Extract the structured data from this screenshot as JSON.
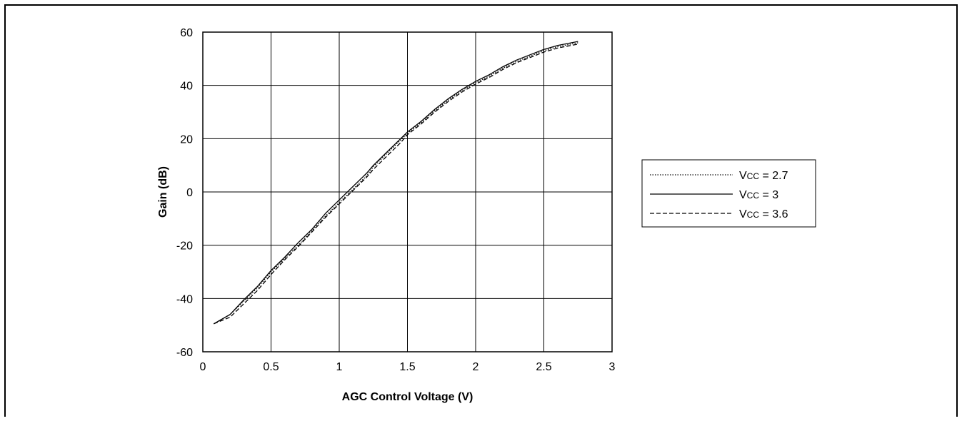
{
  "chart_data": {
    "type": "line",
    "title": "",
    "xlabel": "AGC Control Voltage (V)",
    "ylabel": "Gain (dB)",
    "xlim": [
      0,
      3
    ],
    "ylim": [
      -60,
      60
    ],
    "xticks": [
      0,
      0.5,
      1,
      1.5,
      2,
      2.5,
      3
    ],
    "xtick_labels": [
      "0",
      "0.5",
      "1",
      "1.5",
      "2",
      "2.5",
      "3"
    ],
    "yticks": [
      -60,
      -40,
      -20,
      0,
      20,
      40,
      60
    ],
    "ytick_labels": [
      "-60",
      "-40",
      "-20",
      "0",
      "20",
      "40",
      "60"
    ],
    "grid": true,
    "legend": {
      "position": "right"
    },
    "series": [
      {
        "name": "Vcc = 2.7",
        "legend_label": {
          "v": "V",
          "cc": "CC",
          "rest": " = 2.7"
        },
        "dash": "dotted",
        "x": [
          0.08,
          0.2,
          0.3,
          0.4,
          0.5,
          0.6,
          0.7,
          0.8,
          0.9,
          1.0,
          1.1,
          1.2,
          1.25,
          1.35,
          1.45,
          1.5,
          1.6,
          1.7,
          1.8,
          1.9,
          2.0,
          2.1,
          2.2,
          2.3,
          2.4,
          2.5,
          2.6,
          2.75
        ],
        "y": [
          -49.5,
          -46,
          -41,
          -36,
          -30,
          -25,
          -20,
          -14.5,
          -9,
          -4,
          1,
          6,
          9.5,
          14.5,
          19.5,
          22,
          26,
          30.5,
          34.5,
          38,
          41,
          43.5,
          46.5,
          49,
          51,
          53,
          54.5,
          56
        ]
      },
      {
        "name": "Vcc = 3",
        "legend_label": {
          "v": "V",
          "cc": "CC",
          "rest": " = 3"
        },
        "dash": "solid",
        "x": [
          0.08,
          0.2,
          0.3,
          0.4,
          0.5,
          0.6,
          0.7,
          0.8,
          0.9,
          1.0,
          1.1,
          1.2,
          1.25,
          1.35,
          1.45,
          1.5,
          1.6,
          1.7,
          1.8,
          1.9,
          2.0,
          2.1,
          2.2,
          2.3,
          2.4,
          2.5,
          2.6,
          2.75
        ],
        "y": [
          -49.5,
          -46,
          -40.5,
          -35.5,
          -29.5,
          -24.5,
          -19,
          -14,
          -8,
          -3,
          2,
          7,
          10,
          15,
          20,
          22.5,
          26.5,
          31,
          35,
          38.5,
          41.5,
          44,
          47,
          49.5,
          51.5,
          53.5,
          55,
          56.5
        ]
      },
      {
        "name": "Vcc = 3.6",
        "legend_label": {
          "v": "V",
          "cc": "CC",
          "rest": " = 3.6"
        },
        "dash": "dashed",
        "x": [
          0.08,
          0.2,
          0.3,
          0.4,
          0.5,
          0.6,
          0.7,
          0.8,
          0.9,
          1.0,
          1.1,
          1.2,
          1.25,
          1.35,
          1.45,
          1.5,
          1.6,
          1.7,
          1.8,
          1.9,
          2.0,
          2.1,
          2.2,
          2.3,
          2.4,
          2.5,
          2.6,
          2.75
        ],
        "y": [
          -49.5,
          -47,
          -42,
          -37,
          -31,
          -25.5,
          -20.5,
          -15,
          -9.5,
          -4.5,
          0.5,
          5.5,
          8.5,
          13.5,
          18.5,
          21.5,
          25.5,
          30,
          34,
          37.5,
          40.5,
          43,
          46,
          48.5,
          50.5,
          52.5,
          54,
          55.5
        ]
      }
    ]
  }
}
